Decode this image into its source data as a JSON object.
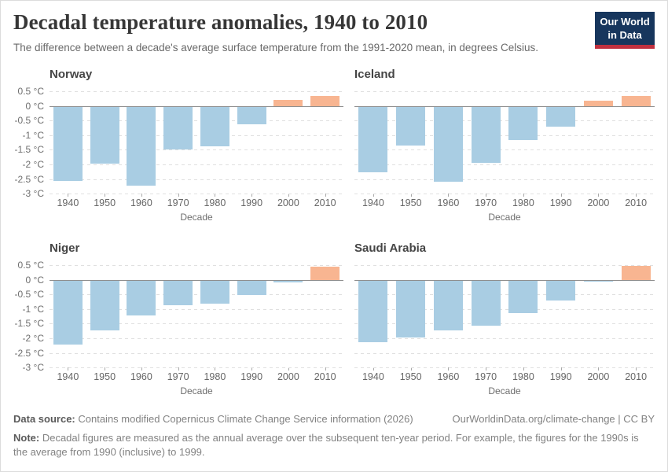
{
  "header": {
    "title": "Decadal temperature anomalies, 1940 to 2010",
    "subtitle": "The difference between a decade's average surface temperature from the 1991-2020 mean, in degrees Celsius.",
    "logo": {
      "line1": "Our World",
      "line2": "in Data"
    }
  },
  "colors": {
    "positive_bar": "#f8b591",
    "negative_bar": "#a9cde3",
    "gridline": "#e0e0e0",
    "zero_line": "#8f8f8f",
    "logo_bg": "#17365d",
    "logo_accent": "#c0303f"
  },
  "chart_data": [
    {
      "type": "bar",
      "title": "Norway",
      "categories": [
        "1940",
        "1950",
        "1960",
        "1970",
        "1980",
        "1990",
        "2000",
        "2010"
      ],
      "values": [
        -2.55,
        -1.95,
        -2.7,
        -1.45,
        -1.35,
        -0.6,
        0.2,
        0.35
      ],
      "xlabel": "Decade",
      "ylabel": "",
      "ylim": [
        -3,
        0.5
      ],
      "yticks": [
        0.5,
        0,
        -0.5,
        -1,
        -1.5,
        -2,
        -2.5,
        -3
      ],
      "ytick_labels": [
        "0.5 °C",
        "0 °C",
        "-0.5 °C",
        "-1 °C",
        "-1.5 °C",
        "-2 °C",
        "-2.5 °C",
        "-3 °C"
      ],
      "show_y_axis": true,
      "grid": true
    },
    {
      "type": "bar",
      "title": "Iceland",
      "categories": [
        "1940",
        "1950",
        "1960",
        "1970",
        "1980",
        "1990",
        "2000",
        "2010"
      ],
      "values": [
        -2.25,
        -1.33,
        -2.57,
        -1.92,
        -1.14,
        -0.68,
        0.18,
        0.35
      ],
      "xlabel": "Decade",
      "ylabel": "",
      "ylim": [
        -3,
        0.5
      ],
      "yticks": [
        0.5,
        0,
        -0.5,
        -1,
        -1.5,
        -2,
        -2.5,
        -3
      ],
      "ytick_labels": [
        "0.5 °C",
        "0 °C",
        "-0.5 °C",
        "-1 °C",
        "-1.5 °C",
        "-2 °C",
        "-2.5 °C",
        "-3 °C"
      ],
      "show_y_axis": false,
      "grid": true
    },
    {
      "type": "bar",
      "title": "Niger",
      "categories": [
        "1940",
        "1950",
        "1960",
        "1970",
        "1980",
        "1990",
        "2000",
        "2010"
      ],
      "values": [
        -2.2,
        -1.7,
        -1.2,
        -0.85,
        -0.8,
        -0.49,
        -0.05,
        0.45
      ],
      "xlabel": "Decade",
      "ylabel": "",
      "ylim": [
        -3,
        0.5
      ],
      "yticks": [
        0.5,
        0,
        -0.5,
        -1,
        -1.5,
        -2,
        -2.5,
        -3
      ],
      "ytick_labels": [
        "0.5 °C",
        "0 °C",
        "-0.5 °C",
        "-1 °C",
        "-1.5 °C",
        "-2 °C",
        "-2.5 °C",
        "-3 °C"
      ],
      "show_y_axis": true,
      "grid": true
    },
    {
      "type": "bar",
      "title": "Saudi Arabia",
      "categories": [
        "1940",
        "1950",
        "1960",
        "1970",
        "1980",
        "1990",
        "2000",
        "2010"
      ],
      "values": [
        -2.1,
        -1.95,
        -1.7,
        -1.55,
        -1.12,
        -0.67,
        -0.02,
        0.48
      ],
      "xlabel": "Decade",
      "ylabel": "",
      "ylim": [
        -3,
        0.5
      ],
      "yticks": [
        0.5,
        0,
        -0.5,
        -1,
        -1.5,
        -2,
        -2.5,
        -3
      ],
      "ytick_labels": [
        "0.5 °C",
        "0 °C",
        "-0.5 °C",
        "-1 °C",
        "-1.5 °C",
        "-2 °C",
        "-2.5 °C",
        "-3 °C"
      ],
      "show_y_axis": false,
      "grid": true
    }
  ],
  "footer": {
    "source_label": "Data source:",
    "source_text": " Contains modified Copernicus Climate Change Service information (2026)",
    "link_text": "OurWorldinData.org/climate-change | CC BY",
    "note_label": "Note:",
    "note_text": " Decadal figures are measured as the annual average over the subsequent ten-year period. For example, the figures for the 1990s is the average from 1990 (inclusive) to 1999."
  }
}
